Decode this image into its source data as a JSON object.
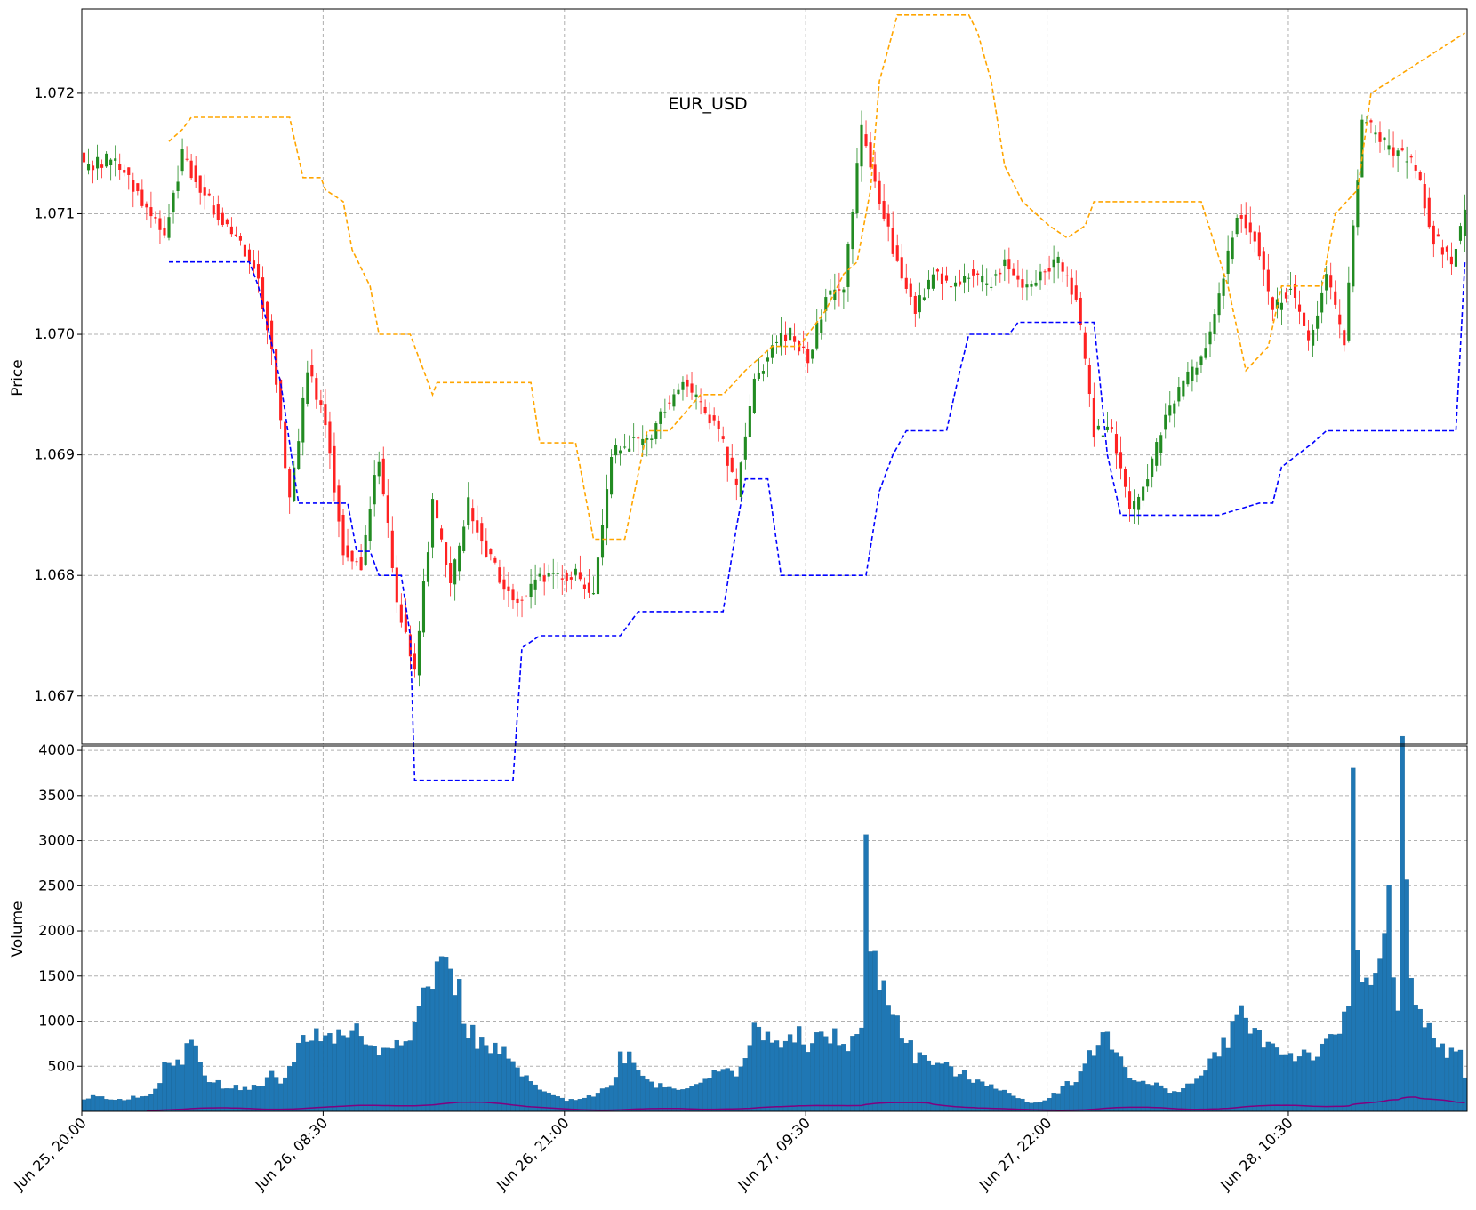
{
  "chart_data": [
    {
      "type": "candlestick",
      "title": "EUR_USD",
      "ylabel": "Price",
      "ylim": [
        1.0666,
        1.0727
      ],
      "grid": true,
      "y_ticks": [
        "1.067",
        "1.068",
        "1.069",
        "1.070",
        "1.071",
        "1.072"
      ],
      "x_tick_labels": [
        "Jun 25, 20:00",
        "Jun 26, 08:30",
        "Jun 26, 21:00",
        "Jun 27, 09:30",
        "Jun 27, 22:00",
        "Jun 28, 10:30"
      ],
      "colors": {
        "up": "#228B22",
        "down": "#FF2222",
        "upper_band": "#FFA500",
        "lower_band": "#0000FF"
      },
      "close_anchors": [
        [
          0,
          1.0714
        ],
        [
          6,
          1.07145
        ],
        [
          10,
          1.0713
        ],
        [
          14,
          1.07105
        ],
        [
          18,
          1.0708
        ],
        [
          22,
          1.0715
        ],
        [
          26,
          1.0712
        ],
        [
          30,
          1.071
        ],
        [
          34,
          1.0708
        ],
        [
          38,
          1.0706
        ],
        [
          42,
          1.0699
        ],
        [
          46,
          1.0686
        ],
        [
          50,
          1.0697
        ],
        [
          54,
          1.0693
        ],
        [
          58,
          1.0682
        ],
        [
          62,
          1.0681
        ],
        [
          66,
          1.069
        ],
        [
          70,
          1.0678
        ],
        [
          74,
          1.0672
        ],
        [
          78,
          1.0686
        ],
        [
          82,
          1.0679
        ],
        [
          86,
          1.0686
        ],
        [
          90,
          1.0682
        ],
        [
          94,
          1.0679
        ],
        [
          98,
          1.0678
        ],
        [
          102,
          1.068
        ],
        [
          106,
          1.068
        ],
        [
          110,
          1.068
        ],
        [
          114,
          1.0678
        ],
        [
          118,
          1.069
        ],
        [
          122,
          1.0691
        ],
        [
          126,
          1.0691
        ],
        [
          130,
          1.0694
        ],
        [
          134,
          1.0696
        ],
        [
          138,
          1.0694
        ],
        [
          142,
          1.0692
        ],
        [
          146,
          1.0687
        ],
        [
          150,
          1.0696
        ],
        [
          154,
          1.0699
        ],
        [
          158,
          1.07
        ],
        [
          162,
          1.0698
        ],
        [
          166,
          1.0703
        ],
        [
          170,
          1.0704
        ],
        [
          174,
          1.0717
        ],
        [
          178,
          1.0711
        ],
        [
          182,
          1.0706
        ],
        [
          186,
          1.0702
        ],
        [
          190,
          1.0705
        ],
        [
          194,
          1.0704
        ],
        [
          198,
          1.0705
        ],
        [
          202,
          1.0704
        ],
        [
          206,
          1.0706
        ],
        [
          210,
          1.0704
        ],
        [
          214,
          1.0705
        ],
        [
          218,
          1.0706
        ],
        [
          222,
          1.0703
        ],
        [
          226,
          1.0692
        ],
        [
          230,
          1.0692
        ],
        [
          234,
          1.0685
        ],
        [
          238,
          1.0688
        ],
        [
          242,
          1.0693
        ],
        [
          246,
          1.0696
        ],
        [
          250,
          1.0698
        ],
        [
          254,
          1.0703
        ],
        [
          258,
          1.071
        ],
        [
          262,
          1.0708
        ],
        [
          266,
          1.0702
        ],
        [
          270,
          1.0704
        ],
        [
          274,
          1.0699
        ],
        [
          278,
          1.0705
        ],
        [
          282,
          1.0699
        ],
        [
          286,
          1.0718
        ],
        [
          290,
          1.0716
        ],
        [
          294,
          1.0715
        ],
        [
          298,
          1.0714
        ],
        [
          302,
          1.0708
        ],
        [
          306,
          1.0706
        ],
        [
          309,
          1.071
        ]
      ],
      "upper_band_anchors": [
        [
          19,
          1.0716
        ],
        [
          22,
          1.0717
        ],
        [
          24,
          1.0718
        ],
        [
          46,
          1.0718
        ],
        [
          49,
          1.0713
        ],
        [
          53,
          1.0713
        ],
        [
          54,
          1.0712
        ],
        [
          58,
          1.0711
        ],
        [
          60,
          1.0707
        ],
        [
          64,
          1.0704
        ],
        [
          66,
          1.07
        ],
        [
          73,
          1.07
        ],
        [
          74,
          1.0699
        ],
        [
          78,
          1.0695
        ],
        [
          79,
          1.0696
        ],
        [
          100,
          1.0696
        ],
        [
          102,
          1.0691
        ],
        [
          110,
          1.0691
        ],
        [
          114,
          1.0683
        ],
        [
          121,
          1.0683
        ],
        [
          126,
          1.0692
        ],
        [
          131,
          1.0692
        ],
        [
          138,
          1.0695
        ],
        [
          143,
          1.0695
        ],
        [
          148,
          1.0697
        ],
        [
          154,
          1.0699
        ],
        [
          160,
          1.0699
        ],
        [
          162,
          1.07
        ],
        [
          166,
          1.0702
        ],
        [
          170,
          1.0705
        ],
        [
          173,
          1.0706
        ],
        [
          176,
          1.0712
        ],
        [
          178,
          1.0721
        ],
        [
          182,
          1.07265
        ],
        [
          198,
          1.07265
        ],
        [
          200,
          1.0725
        ],
        [
          203,
          1.0721
        ],
        [
          206,
          1.0714
        ],
        [
          210,
          1.0711
        ],
        [
          213,
          1.071
        ],
        [
          216,
          1.0709
        ],
        [
          220,
          1.0708
        ],
        [
          224,
          1.0709
        ],
        [
          226,
          1.0711
        ],
        [
          250,
          1.0711
        ],
        [
          256,
          1.0704
        ],
        [
          260,
          1.0697
        ],
        [
          265,
          1.0699
        ],
        [
          268,
          1.0704
        ],
        [
          277,
          1.0704
        ],
        [
          280,
          1.071
        ],
        [
          285,
          1.0712
        ],
        [
          288,
          1.072
        ],
        [
          309,
          1.0725
        ]
      ],
      "lower_band_anchors": [
        [
          19,
          1.0706
        ],
        [
          37,
          1.0706
        ],
        [
          39,
          1.0704
        ],
        [
          44,
          1.0696
        ],
        [
          48,
          1.0686
        ],
        [
          59,
          1.0686
        ],
        [
          61,
          1.0682
        ],
        [
          64,
          1.0682
        ],
        [
          66,
          1.068
        ],
        [
          71,
          1.068
        ],
        [
          73,
          1.0675
        ],
        [
          74,
          1.0663
        ],
        [
          96,
          1.0663
        ],
        [
          98,
          1.0674
        ],
        [
          102,
          1.0675
        ],
        [
          120,
          1.0675
        ],
        [
          124,
          1.0677
        ],
        [
          143,
          1.0677
        ],
        [
          146,
          1.0684
        ],
        [
          148,
          1.0688
        ],
        [
          153,
          1.0688
        ],
        [
          156,
          1.068
        ],
        [
          175,
          1.068
        ],
        [
          178,
          1.0687
        ],
        [
          181,
          1.069
        ],
        [
          184,
          1.0692
        ],
        [
          193,
          1.0692
        ],
        [
          196,
          1.0697
        ],
        [
          198,
          1.07
        ],
        [
          207,
          1.07
        ],
        [
          209,
          1.0701
        ],
        [
          226,
          1.0701
        ],
        [
          229,
          1.069
        ],
        [
          232,
          1.0685
        ],
        [
          254,
          1.0685
        ],
        [
          263,
          1.0686
        ],
        [
          266,
          1.0686
        ],
        [
          268,
          1.0689
        ],
        [
          275,
          1.0691
        ],
        [
          278,
          1.0692
        ],
        [
          307,
          1.0692
        ],
        [
          309,
          1.0706
        ]
      ]
    },
    {
      "type": "bar",
      "ylabel": "Volume",
      "ylim": [
        0,
        4050
      ],
      "y_ticks": [
        "500",
        "1000",
        "1500",
        "2000",
        "2500",
        "3000",
        "3500",
        "4000"
      ],
      "bar_color": "#1F77B4",
      "avg_line_color": "#800080",
      "volume_anchors": [
        [
          0,
          150
        ],
        [
          4,
          160
        ],
        [
          8,
          120
        ],
        [
          12,
          170
        ],
        [
          16,
          220
        ],
        [
          18,
          480
        ],
        [
          20,
          500
        ],
        [
          22,
          560
        ],
        [
          24,
          900
        ],
        [
          26,
          500
        ],
        [
          28,
          330
        ],
        [
          32,
          280
        ],
        [
          36,
          250
        ],
        [
          40,
          260
        ],
        [
          42,
          400
        ],
        [
          44,
          300
        ],
        [
          46,
          480
        ],
        [
          48,
          720
        ],
        [
          50,
          830
        ],
        [
          52,
          870
        ],
        [
          54,
          850
        ],
        [
          56,
          780
        ],
        [
          58,
          900
        ],
        [
          60,
          870
        ],
        [
          62,
          900
        ],
        [
          64,
          680
        ],
        [
          66,
          650
        ],
        [
          68,
          760
        ],
        [
          70,
          800
        ],
        [
          72,
          880
        ],
        [
          74,
          940
        ],
        [
          76,
          1300
        ],
        [
          78,
          1500
        ],
        [
          80,
          1550
        ],
        [
          81,
          1920
        ],
        [
          82,
          1450
        ],
        [
          84,
          1300
        ],
        [
          86,
          900
        ],
        [
          88,
          780
        ],
        [
          90,
          700
        ],
        [
          92,
          680
        ],
        [
          94,
          620
        ],
        [
          96,
          520
        ],
        [
          98,
          400
        ],
        [
          100,
          310
        ],
        [
          104,
          180
        ],
        [
          108,
          130
        ],
        [
          112,
          160
        ],
        [
          114,
          180
        ],
        [
          118,
          280
        ],
        [
          120,
          600
        ],
        [
          122,
          620
        ],
        [
          124,
          500
        ],
        [
          126,
          350
        ],
        [
          128,
          300
        ],
        [
          132,
          250
        ],
        [
          136,
          290
        ],
        [
          138,
          350
        ],
        [
          142,
          420
        ],
        [
          146,
          450
        ],
        [
          148,
          600
        ],
        [
          150,
          900
        ],
        [
          152,
          800
        ],
        [
          154,
          860
        ],
        [
          156,
          720
        ],
        [
          158,
          750
        ],
        [
          160,
          820
        ],
        [
          162,
          760
        ],
        [
          164,
          780
        ],
        [
          166,
          850
        ],
        [
          168,
          800
        ],
        [
          170,
          720
        ],
        [
          172,
          780
        ],
        [
          174,
          900
        ],
        [
          175,
          2750
        ],
        [
          176,
          1800
        ],
        [
          178,
          1450
        ],
        [
          180,
          1300
        ],
        [
          182,
          1000
        ],
        [
          184,
          800
        ],
        [
          186,
          600
        ],
        [
          188,
          580
        ],
        [
          190,
          550
        ],
        [
          192,
          500
        ],
        [
          194,
          450
        ],
        [
          196,
          420
        ],
        [
          198,
          380
        ],
        [
          200,
          360
        ],
        [
          202,
          310
        ],
        [
          204,
          280
        ],
        [
          206,
          220
        ],
        [
          208,
          160
        ],
        [
          210,
          130
        ],
        [
          212,
          100
        ],
        [
          214,
          100
        ],
        [
          216,
          160
        ],
        [
          218,
          230
        ],
        [
          220,
          300
        ],
        [
          222,
          370
        ],
        [
          224,
          500
        ],
        [
          226,
          700
        ],
        [
          228,
          850
        ],
        [
          230,
          700
        ],
        [
          232,
          600
        ],
        [
          234,
          420
        ],
        [
          236,
          320
        ],
        [
          240,
          280
        ],
        [
          242,
          250
        ],
        [
          244,
          230
        ],
        [
          246,
          260
        ],
        [
          248,
          300
        ],
        [
          250,
          400
        ],
        [
          252,
          520
        ],
        [
          254,
          700
        ],
        [
          256,
          800
        ],
        [
          258,
          1000
        ],
        [
          260,
          1100
        ],
        [
          262,
          900
        ],
        [
          264,
          780
        ],
        [
          266,
          720
        ],
        [
          268,
          660
        ],
        [
          270,
          620
        ],
        [
          272,
          620
        ],
        [
          274,
          640
        ],
        [
          276,
          620
        ],
        [
          278,
          700
        ],
        [
          280,
          800
        ],
        [
          282,
          1000
        ],
        [
          283,
          1250
        ],
        [
          284,
          3650
        ],
        [
          285,
          1800
        ],
        [
          286,
          1650
        ],
        [
          288,
          1500
        ],
        [
          290,
          1580
        ],
        [
          292,
          2200
        ],
        [
          293,
          1550
        ],
        [
          294,
          1300
        ],
        [
          295,
          3700
        ],
        [
          296,
          2500
        ],
        [
          297,
          1350
        ],
        [
          298,
          1100
        ],
        [
          300,
          950
        ],
        [
          302,
          800
        ],
        [
          304,
          700
        ],
        [
          306,
          640
        ],
        [
          308,
          600
        ],
        [
          309,
          380
        ]
      ]
    }
  ]
}
